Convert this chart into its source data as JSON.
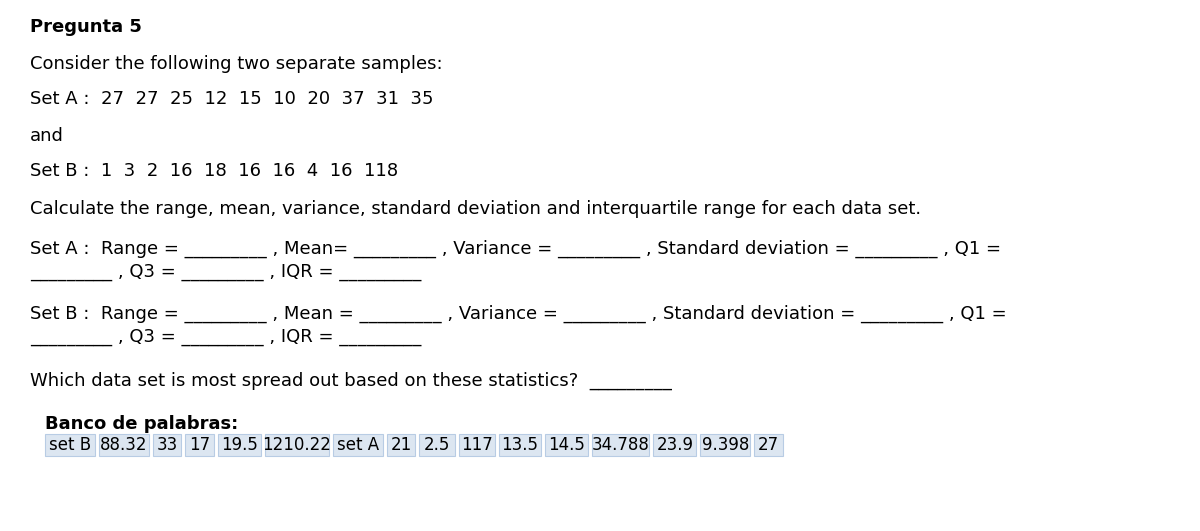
{
  "title": "Pregunta 5",
  "line1": "Consider the following two separate samples:",
  "line2a": "Set A : ",
  "line2b": " 27  27  25  12  15  10  20  37  31  35",
  "line3": "and",
  "line4a": "Set B : ",
  "line4b": " 1  3  2  16  18  16  16  4  16  118",
  "line5": "Calculate the range, mean, variance, standard deviation and interquartile range for each data set.",
  "setA_line1a": "Set A :  Range = _________ , Mean= _________ , Variance = _________ , Standard deviation = _________ , Q1 =",
  "setA_line2": "_________ , Q3 = _________ , IQR = _________",
  "setB_line1": "Set B :  Range = _________ , Mean = _________ , Variance = _________ , Standard deviation = _________ , Q1 =",
  "setB_line2": "_________ , Q3 = _________ , IQR = _________",
  "question": "Which data set is most spread out based on these statistics?  _________",
  "banco_title": "Banco de palabras:",
  "banco_words": [
    "set B",
    "88.32",
    "33",
    "17",
    "19.5",
    "1210.22",
    "set A",
    "21",
    "2.5",
    "117",
    "13.5",
    "14.5",
    "34.788",
    "23.9",
    "9.398",
    "27"
  ],
  "bg_color": "#ffffff",
  "text_color": "#000000",
  "box_fill": "#dce6f1",
  "box_edge": "#b8cce4"
}
